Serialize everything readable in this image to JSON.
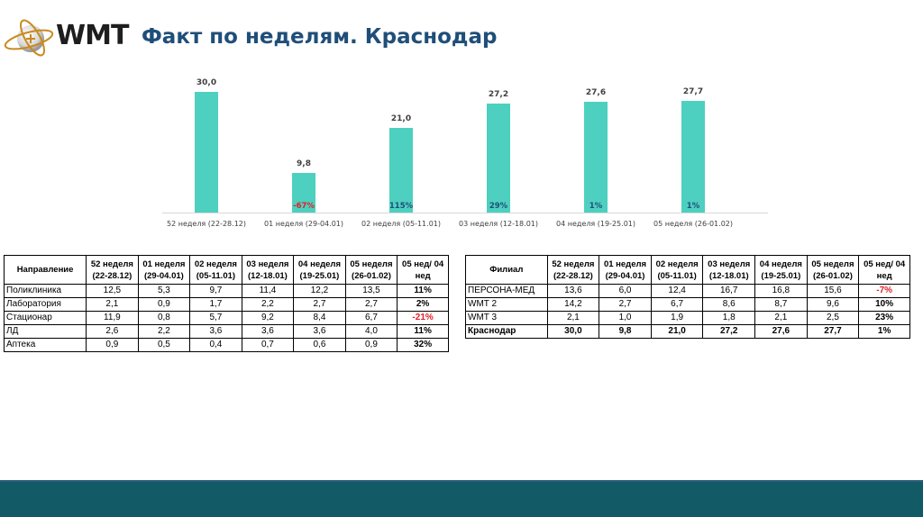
{
  "header": {
    "logo_text": "WMT",
    "title": "Факт по неделям. Краснодар"
  },
  "colors": {
    "bar": "#4dd0bf",
    "title": "#1f4e79",
    "negative": "#e0202a",
    "positive_pct": "#1f4e79",
    "footer": "#115a66"
  },
  "chart_data": {
    "type": "bar",
    "title": "",
    "xlabel": "",
    "ylabel": "",
    "ylim": [
      0,
      30
    ],
    "grid": false,
    "categories": [
      "52 неделя (22-28.12)",
      "01 неделя (29-04.01)",
      "02 неделя (05-11.01)",
      "03 неделя (12-18.01)",
      "04 неделя (19-25.01)",
      "05 неделя (26-01.02)"
    ],
    "values": [
      30.0,
      9.8,
      21.0,
      27.2,
      27.6,
      27.7
    ],
    "value_labels": [
      "30,0",
      "9,8",
      "21,0",
      "27,2",
      "27,6",
      "27,7"
    ],
    "change_labels": [
      "",
      "-67%",
      "115%",
      "29%",
      "1%",
      "1%"
    ]
  },
  "left_table": {
    "headers": [
      "Направление",
      "52 неделя (22-28.12)",
      "01 неделя (29-04.01)",
      "02 неделя (05-11.01)",
      "03 неделя (12-18.01)",
      "04 неделя (19-25.01)",
      "05 неделя (26-01.02)",
      "05 нед/ 04 нед"
    ],
    "header_lines": [
      [
        "Направление",
        ""
      ],
      [
        "52 неделя",
        "(22-28.12)"
      ],
      [
        "01 неделя",
        "(29-04.01)"
      ],
      [
        "02 неделя",
        "(05-11.01)"
      ],
      [
        "03 неделя",
        "(12-18.01)"
      ],
      [
        "04 неделя",
        "(19-25.01)"
      ],
      [
        "05 неделя",
        "(26-01.02)"
      ],
      [
        "05 нед/ 04",
        "нед"
      ]
    ],
    "rows": [
      {
        "name": "Поликлиника",
        "values": [
          "12,5",
          "5,3",
          "9,7",
          "11,4",
          "12,2",
          "13,5"
        ],
        "change": "11%"
      },
      {
        "name": "Лаборатория",
        "values": [
          "2,1",
          "0,9",
          "1,7",
          "2,2",
          "2,7",
          "2,7"
        ],
        "change": "2%"
      },
      {
        "name": "Стационар",
        "values": [
          "11,9",
          "0,8",
          "5,7",
          "9,2",
          "8,4",
          "6,7"
        ],
        "change": "-21%"
      },
      {
        "name": "ЛД",
        "values": [
          "2,6",
          "2,2",
          "3,6",
          "3,6",
          "3,6",
          "4,0"
        ],
        "change": "11%"
      },
      {
        "name": "Аптека",
        "values": [
          "0,9",
          "0,5",
          "0,4",
          "0,7",
          "0,6",
          "0,9"
        ],
        "change": "32%"
      }
    ]
  },
  "right_table": {
    "headers": [
      "Филиал",
      "52 неделя (22-28.12)",
      "01 неделя (29-04.01)",
      "02 неделя (05-11.01)",
      "03 неделя (12-18.01)",
      "04 неделя (19-25.01)",
      "05 неделя (26-01.02)",
      "05 нед/ 04 нед"
    ],
    "header_lines": [
      [
        "Филиал",
        ""
      ],
      [
        "52 неделя",
        "(22-28.12)"
      ],
      [
        "01 неделя",
        "(29-04.01)"
      ],
      [
        "02 неделя",
        "(05-11.01)"
      ],
      [
        "03 неделя",
        "(12-18.01)"
      ],
      [
        "04 неделя",
        "(19-25.01)"
      ],
      [
        "05 неделя",
        "(26-01.02)"
      ],
      [
        "05 нед/ 04",
        "нед"
      ]
    ],
    "rows": [
      {
        "name": "ПЕРСОНА-МЕД",
        "values": [
          "13,6",
          "6,0",
          "12,4",
          "16,7",
          "16,8",
          "15,6"
        ],
        "change": "-7%"
      },
      {
        "name": "WMT 2",
        "values": [
          "14,2",
          "2,7",
          "6,7",
          "8,6",
          "8,7",
          "9,6"
        ],
        "change": "10%"
      },
      {
        "name": "WMT 3",
        "values": [
          "2,1",
          "1,0",
          "1,9",
          "1,8",
          "2,1",
          "2,5"
        ],
        "change": "23%"
      },
      {
        "name": "Краснодар",
        "values": [
          "30,0",
          "9,8",
          "21,0",
          "27,2",
          "27,6",
          "27,7"
        ],
        "change": "1%",
        "total": true
      }
    ]
  }
}
